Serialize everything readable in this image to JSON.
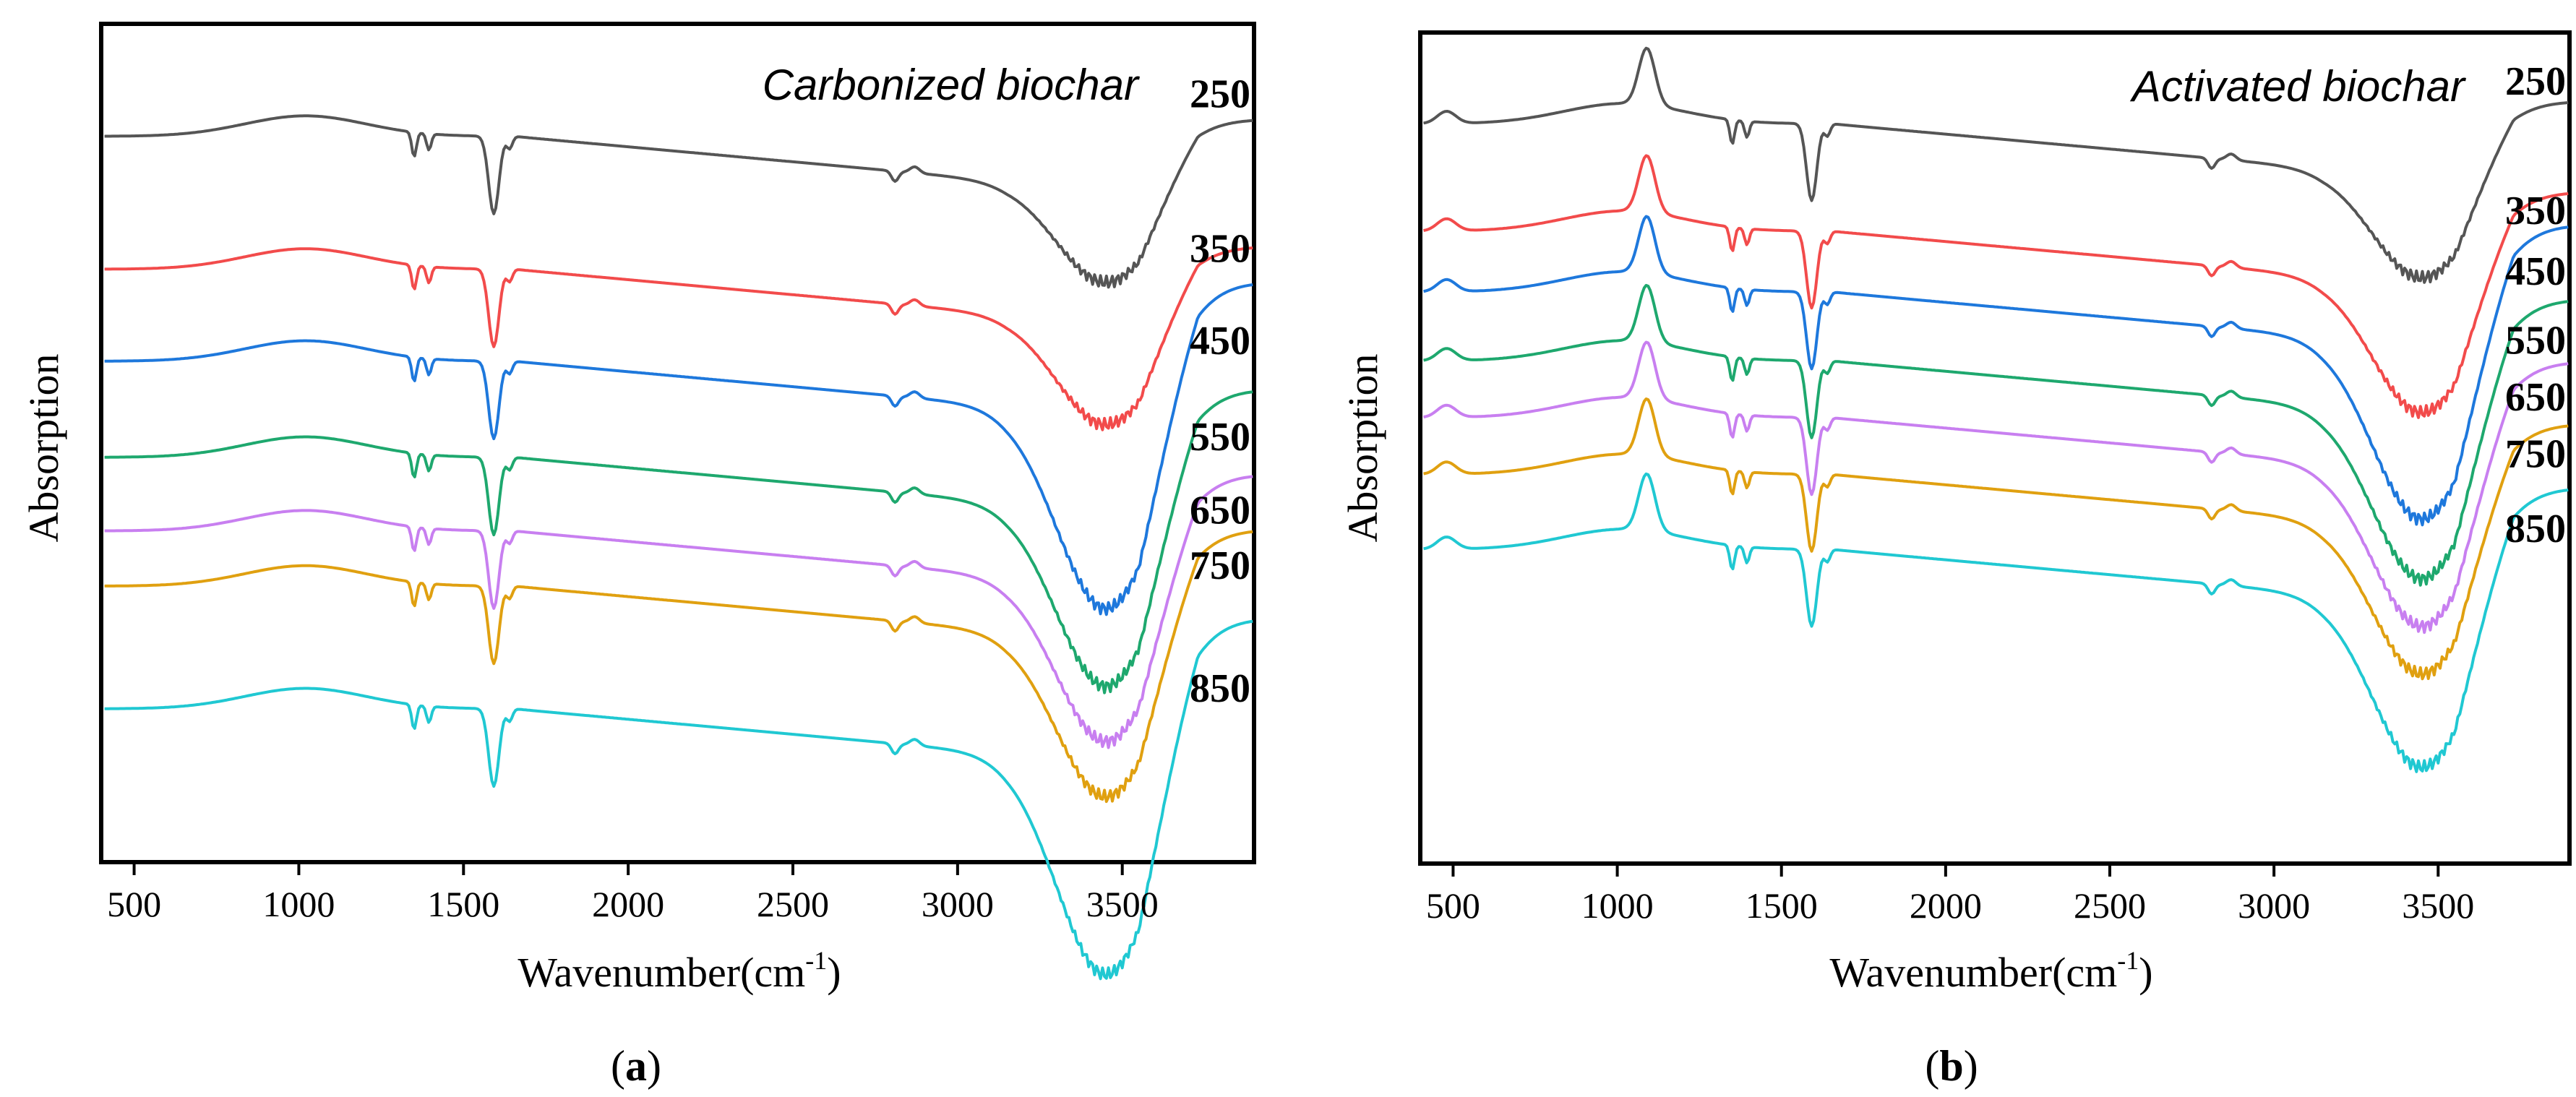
{
  "chart_data": [
    {
      "type": "line",
      "panel": "(a)",
      "panel_letter": "a",
      "title": "Carbonized biochar",
      "xlabel": "Wavenumber(cm",
      "xlabel_sup": "-1",
      "xlabel_end": ")",
      "ylabel": "Absorption",
      "xlim": [
        400,
        3900
      ],
      "xticks": [
        500,
        1000,
        1500,
        2000,
        2500,
        3000,
        3500
      ],
      "colors": [
        "#555555",
        "#f24b4b",
        "#1e78dc",
        "#1ea86e",
        "#c87ff0",
        "#e0a010",
        "#20c8d2"
      ],
      "series": [
        {
          "name": "250",
          "offset": 3.35,
          "depth": 0.55
        },
        {
          "name": "350",
          "offset": 2.7,
          "depth": 0.6
        },
        {
          "name": "450",
          "offset": 2.25,
          "depth": 1.1
        },
        {
          "name": "550",
          "offset": 1.78,
          "depth": 1.0
        },
        {
          "name": "650",
          "offset": 1.42,
          "depth": 0.9
        },
        {
          "name": "750",
          "offset": 1.15,
          "depth": 0.9
        },
        {
          "name": "850",
          "offset": 0.55,
          "depth": 1.2
        }
      ]
    },
    {
      "type": "line",
      "panel": "(b)",
      "panel_letter": "b",
      "title": "Activated biochar",
      "xlabel": "Wavenumber(cm",
      "xlabel_sup": "-1",
      "xlabel_end": ")",
      "ylabel": "Absorption",
      "xlim": [
        400,
        3900
      ],
      "xticks": [
        500,
        1000,
        1500,
        2000,
        2500,
        3000,
        3500
      ],
      "colors": [
        "#555555",
        "#f24b4b",
        "#1e78dc",
        "#1ea86e",
        "#c87ff0",
        "#e0a010",
        "#20c8d2"
      ],
      "series": [
        {
          "name": "250",
          "offset": 3.45,
          "depth": 0.6
        },
        {
          "name": "350",
          "offset": 2.92,
          "depth": 0.75
        },
        {
          "name": "450",
          "offset": 2.62,
          "depth": 1.0
        },
        {
          "name": "550",
          "offset": 2.28,
          "depth": 0.95
        },
        {
          "name": "650",
          "offset": 2.0,
          "depth": 0.9
        },
        {
          "name": "750",
          "offset": 1.72,
          "depth": 0.85
        },
        {
          "name": "850",
          "offset": 1.35,
          "depth": 0.95
        }
      ]
    }
  ]
}
